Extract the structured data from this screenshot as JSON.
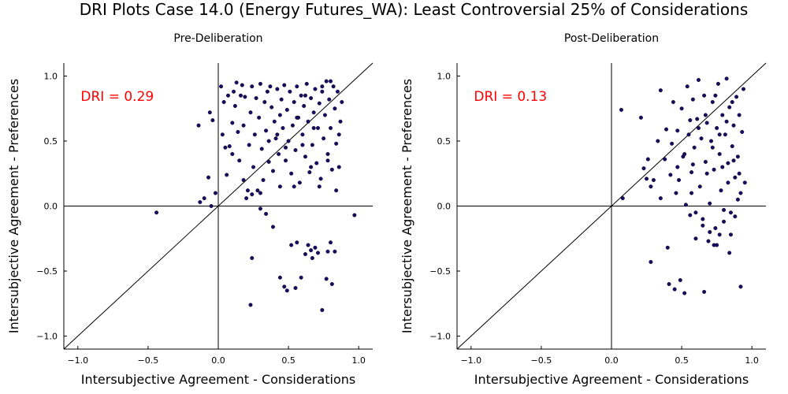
{
  "suptitle": "DRI Plots Case 14.0 (Energy Futures_WA): Least Controversial 25% of Considerations",
  "colors": {
    "points": "#1a0a66",
    "dri": "#ff0000",
    "axes": "#000000"
  },
  "chart_data": [
    {
      "type": "scatter",
      "title": "Pre-Deliberation",
      "xlabel": "Intersubjective Agreement - Considerations",
      "ylabel": "Intersubjective Agreement - Preferences",
      "xlim": [
        -1.1,
        1.1
      ],
      "ylim": [
        -1.1,
        1.1
      ],
      "xticks": [
        -1.0,
        -0.5,
        0.0,
        0.5,
        1.0
      ],
      "yticks": [
        -1.0,
        -0.5,
        0.0,
        0.5,
        1.0
      ],
      "xtick_labels": [
        "−1.0",
        "−0.5",
        "0.0",
        "0.5",
        "1.0"
      ],
      "ytick_labels": [
        "−1.0",
        "−0.5",
        "0.0",
        "0.5",
        "1.0"
      ],
      "grid": false,
      "annotation": "DRI = 0.29",
      "reference_line": "y = x",
      "points": [
        [
          -0.44,
          -0.05
        ],
        [
          -0.14,
          0.62
        ],
        [
          -0.13,
          0.03
        ],
        [
          -0.1,
          0.06
        ],
        [
          -0.07,
          0.22
        ],
        [
          -0.06,
          0.72
        ],
        [
          -0.05,
          0.0
        ],
        [
          -0.04,
          0.66
        ],
        [
          -0.02,
          0.1
        ],
        [
          0.02,
          0.92
        ],
        [
          0.03,
          0.55
        ],
        [
          0.04,
          0.8
        ],
        [
          0.05,
          0.45
        ],
        [
          0.06,
          0.24
        ],
        [
          0.07,
          0.85
        ],
        [
          0.08,
          0.46
        ],
        [
          0.1,
          0.64
        ],
        [
          0.11,
          0.88
        ],
        [
          0.12,
          0.77
        ],
        [
          0.13,
          0.95
        ],
        [
          0.14,
          0.57
        ],
        [
          0.15,
          0.35
        ],
        [
          0.16,
          0.85
        ],
        [
          0.17,
          0.93
        ],
        [
          0.18,
          0.62
        ],
        [
          0.19,
          0.84
        ],
        [
          0.2,
          0.06
        ],
        [
          0.21,
          0.12
        ],
        [
          0.22,
          0.47
        ],
        [
          0.23,
          0.72
        ],
        [
          0.24,
          0.92
        ],
        [
          0.25,
          0.3
        ],
        [
          0.26,
          0.55
        ],
        [
          0.27,
          0.83
        ],
        [
          0.28,
          0.12
        ],
        [
          0.29,
          0.68
        ],
        [
          0.3,
          0.94
        ],
        [
          0.31,
          0.44
        ],
        [
          0.32,
          0.2
        ],
        [
          0.33,
          0.8
        ],
        [
          0.34,
          0.58
        ],
        [
          0.35,
          0.88
        ],
        [
          0.36,
          0.34
        ],
        [
          0.37,
          0.92
        ],
        [
          0.38,
          0.76
        ],
        [
          0.39,
          0.27
        ],
        [
          0.4,
          0.65
        ],
        [
          0.41,
          0.52
        ],
        [
          0.42,
          0.9
        ],
        [
          0.43,
          0.4
        ],
        [
          0.44,
          0.15
        ],
        [
          0.45,
          0.82
        ],
        [
          0.46,
          0.6
        ],
        [
          0.47,
          0.93
        ],
        [
          0.48,
          0.35
        ],
        [
          0.49,
          0.74
        ],
        [
          0.5,
          0.5
        ],
        [
          0.51,
          0.88
        ],
        [
          0.52,
          0.25
        ],
        [
          0.53,
          0.62
        ],
        [
          0.54,
          0.8
        ],
        [
          0.55,
          0.43
        ],
        [
          0.56,
          0.92
        ],
        [
          0.57,
          0.68
        ],
        [
          0.58,
          0.18
        ],
        [
          0.59,
          0.85
        ],
        [
          0.6,
          0.55
        ],
        [
          0.61,
          0.77
        ],
        [
          0.62,
          0.38
        ],
        [
          0.63,
          0.94
        ],
        [
          0.64,
          0.65
        ],
        [
          0.65,
          0.26
        ],
        [
          0.66,
          0.83
        ],
        [
          0.67,
          0.47
        ],
        [
          0.68,
          0.72
        ],
        [
          0.69,
          0.9
        ],
        [
          0.7,
          0.33
        ],
        [
          0.71,
          0.6
        ],
        [
          0.72,
          0.79
        ],
        [
          0.73,
          0.21
        ],
        [
          0.74,
          0.88
        ],
        [
          0.75,
          0.52
        ],
        [
          0.76,
          0.7
        ],
        [
          0.77,
          0.96
        ],
        [
          0.78,
          0.4
        ],
        [
          0.79,
          0.82
        ],
        [
          0.8,
          0.6
        ],
        [
          0.81,
          0.28
        ],
        [
          0.82,
          0.92
        ],
        [
          0.83,
          0.75
        ],
        [
          0.84,
          0.48
        ],
        [
          0.85,
          0.88
        ],
        [
          0.86,
          0.3
        ],
        [
          0.87,
          0.65
        ],
        [
          0.88,
          0.8
        ],
        [
          0.1,
          0.4
        ],
        [
          0.18,
          0.2
        ],
        [
          0.24,
          0.09
        ],
        [
          0.3,
          0.1
        ],
        [
          0.36,
          0.5
        ],
        [
          0.42,
          0.55
        ],
        [
          0.48,
          0.45
        ],
        [
          0.54,
          0.15
        ],
        [
          0.6,
          0.47
        ],
        [
          0.66,
          0.3
        ],
        [
          0.72,
          0.15
        ],
        [
          0.78,
          0.35
        ],
        [
          0.84,
          0.12
        ],
        [
          0.44,
          0.7
        ],
        [
          0.56,
          0.68
        ],
        [
          0.62,
          0.85
        ],
        [
          0.68,
          0.6
        ],
        [
          0.74,
          0.92
        ],
        [
          0.8,
          0.96
        ],
        [
          0.86,
          0.55
        ],
        [
          0.97,
          -0.07
        ],
        [
          0.23,
          -0.76
        ],
        [
          0.24,
          -0.4
        ],
        [
          0.3,
          -0.02
        ],
        [
          0.34,
          -0.06
        ],
        [
          0.39,
          -0.16
        ],
        [
          0.44,
          -0.55
        ],
        [
          0.47,
          -0.62
        ],
        [
          0.49,
          -0.65
        ],
        [
          0.52,
          -0.3
        ],
        [
          0.55,
          -0.63
        ],
        [
          0.56,
          -0.28
        ],
        [
          0.59,
          -0.55
        ],
        [
          0.62,
          -0.37
        ],
        [
          0.64,
          -0.3
        ],
        [
          0.66,
          -0.34
        ],
        [
          0.67,
          -0.4
        ],
        [
          0.69,
          -0.32
        ],
        [
          0.71,
          -0.36
        ],
        [
          0.74,
          -0.8
        ],
        [
          0.77,
          -0.56
        ],
        [
          0.78,
          -0.35
        ],
        [
          0.8,
          -0.28
        ],
        [
          0.81,
          -0.6
        ],
        [
          0.83,
          -0.35
        ]
      ]
    },
    {
      "type": "scatter",
      "title": "Post-Deliberation",
      "xlabel": "Intersubjective Agreement - Considerations",
      "ylabel": "Intersubjective Agreement - Preferences",
      "xlim": [
        -1.1,
        1.1
      ],
      "ylim": [
        -1.1,
        1.1
      ],
      "xticks": [
        -1.0,
        -0.5,
        0.0,
        0.5,
        1.0
      ],
      "yticks": [
        -1.0,
        -0.5,
        0.0,
        0.5,
        1.0
      ],
      "xtick_labels": [
        "−1.0",
        "−0.5",
        "0.0",
        "0.5",
        "1.0"
      ],
      "ytick_labels": [
        "−1.0",
        "−0.5",
        "0.0",
        "0.5",
        "1.0"
      ],
      "grid": false,
      "annotation": "DRI = 0.13",
      "reference_line": "y = x",
      "points": [
        [
          0.07,
          0.74
        ],
        [
          0.08,
          0.06
        ],
        [
          0.21,
          0.68
        ],
        [
          0.23,
          0.29
        ],
        [
          0.25,
          0.21
        ],
        [
          0.26,
          0.36
        ],
        [
          0.28,
          0.15
        ],
        [
          0.28,
          -0.43
        ],
        [
          0.3,
          0.2
        ],
        [
          0.33,
          0.5
        ],
        [
          0.35,
          0.89
        ],
        [
          0.35,
          0.06
        ],
        [
          0.38,
          0.36
        ],
        [
          0.39,
          0.59
        ],
        [
          0.4,
          -0.32
        ],
        [
          0.41,
          -0.6
        ],
        [
          0.42,
          0.24
        ],
        [
          0.43,
          0.48
        ],
        [
          0.44,
          0.8
        ],
        [
          0.45,
          -0.64
        ],
        [
          0.46,
          0.1
        ],
        [
          0.47,
          0.58
        ],
        [
          0.48,
          0.2
        ],
        [
          0.49,
          -0.57
        ],
        [
          0.5,
          0.75
        ],
        [
          0.51,
          0.38
        ],
        [
          0.52,
          -0.67
        ],
        [
          0.53,
          0.01
        ],
        [
          0.54,
          0.92
        ],
        [
          0.55,
          0.55
        ],
        [
          0.56,
          -0.07
        ],
        [
          0.57,
          0.26
        ],
        [
          0.58,
          0.82
        ],
        [
          0.59,
          0.45
        ],
        [
          0.6,
          -0.25
        ],
        [
          0.61,
          0.67
        ],
        [
          0.62,
          0.97
        ],
        [
          0.63,
          0.15
        ],
        [
          0.64,
          0.52
        ],
        [
          0.65,
          -0.1
        ],
        [
          0.66,
          0.85
        ],
        [
          0.67,
          0.34
        ],
        [
          0.68,
          0.64
        ],
        [
          0.69,
          -0.27
        ],
        [
          0.7,
          0.02
        ],
        [
          0.71,
          0.5
        ],
        [
          0.72,
          0.8
        ],
        [
          0.73,
          0.28
        ],
        [
          0.74,
          -0.17
        ],
        [
          0.75,
          0.6
        ],
        [
          0.76,
          0.94
        ],
        [
          0.77,
          0.4
        ],
        [
          0.78,
          0.12
        ],
        [
          0.79,
          0.7
        ],
        [
          0.8,
          -0.03
        ],
        [
          0.81,
          0.55
        ],
        [
          0.82,
          0.98
        ],
        [
          0.83,
          0.33
        ],
        [
          0.84,
          0.76
        ],
        [
          0.85,
          -0.22
        ],
        [
          0.86,
          0.46
        ],
        [
          0.87,
          0.62
        ],
        [
          0.88,
          0.22
        ],
        [
          0.89,
          0.84
        ],
        [
          0.9,
          0.38
        ],
        [
          0.91,
          0.7
        ],
        [
          0.92,
          0.1
        ],
        [
          0.93,
          0.57
        ],
        [
          0.94,
          0.9
        ],
        [
          0.95,
          0.18
        ],
        [
          0.47,
          0.3
        ],
        [
          0.52,
          0.4
        ],
        [
          0.57,
          0.1
        ],
        [
          0.62,
          0.6
        ],
        [
          0.67,
          0.7
        ],
        [
          0.72,
          0.45
        ],
        [
          0.77,
          0.55
        ],
        [
          0.82,
          0.65
        ],
        [
          0.87,
          0.35
        ],
        [
          0.6,
          -0.05
        ],
        [
          0.65,
          -0.15
        ],
        [
          0.7,
          -0.2
        ],
        [
          0.75,
          -0.3
        ],
        [
          0.8,
          -0.12
        ],
        [
          0.85,
          -0.05
        ],
        [
          0.9,
          0.05
        ],
        [
          0.66,
          -0.66
        ],
        [
          0.73,
          -0.3
        ],
        [
          0.77,
          -0.22
        ],
        [
          0.84,
          -0.36
        ],
        [
          0.88,
          -0.08
        ],
        [
          0.92,
          -0.62
        ],
        [
          0.83,
          0.18
        ],
        [
          0.68,
          0.25
        ],
        [
          0.74,
          0.85
        ],
        [
          0.79,
          0.3
        ],
        [
          0.86,
          0.8
        ],
        [
          0.91,
          0.25
        ],
        [
          0.56,
          0.66
        ],
        [
          0.58,
          0.32
        ]
      ]
    }
  ]
}
